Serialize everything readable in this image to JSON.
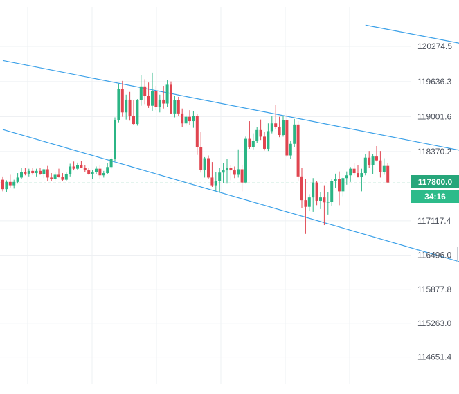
{
  "chart_data": {
    "type": "candlestick",
    "price_axis": {
      "ticks": [
        "120274.5",
        "119636.3",
        "119001.6",
        "118370.2",
        "117117.4",
        "116496.0",
        "115877.8",
        "115263.0",
        "114651.4"
      ],
      "tick_values": [
        120274.5,
        119636.3,
        119001.6,
        118370.2,
        117117.4,
        116496.0,
        115877.8,
        115263.0,
        114651.4
      ]
    },
    "current_price": {
      "label": "117800.0",
      "value": 117800.0,
      "color": "#26a67a"
    },
    "countdown": {
      "label": "34:16",
      "color": "#2dbb8a"
    },
    "colors": {
      "up": "#2bb585",
      "down": "#e04550",
      "channel": "#3aa0e8",
      "grid": "#eef0f3",
      "price_line": "#26a67a"
    },
    "grid": true,
    "channel_lines": [
      {
        "name": "upper",
        "from": [
          0,
          120020
        ],
        "to": [
          127,
          118330
        ]
      },
      {
        "name": "lower",
        "from": [
          0,
          118770
        ],
        "to": [
          127,
          116280
        ]
      },
      {
        "name": "top",
        "from": [
          97,
          120660
        ],
        "to": [
          127,
          120270
        ]
      }
    ],
    "candles": [
      [
        117860,
        117920,
        117650,
        117690
      ],
      [
        117690,
        117850,
        117640,
        117820
      ],
      [
        117820,
        117950,
        117720,
        117760
      ],
      [
        117760,
        117860,
        117700,
        117820
      ],
      [
        117820,
        117980,
        117790,
        117900
      ],
      [
        117900,
        118080,
        117880,
        118000
      ],
      [
        118000,
        118080,
        117940,
        117970
      ],
      [
        117970,
        118060,
        117920,
        118020
      ],
      [
        118020,
        118080,
        117950,
        117980
      ],
      [
        117980,
        118060,
        117920,
        118020
      ],
      [
        118020,
        118080,
        117950,
        117960
      ],
      [
        117960,
        118060,
        117890,
        118050
      ],
      [
        118050,
        118110,
        117830,
        117900
      ],
      [
        117900,
        117980,
        117840,
        117880
      ],
      [
        117880,
        117990,
        117850,
        117950
      ],
      [
        117950,
        118060,
        117900,
        117910
      ],
      [
        117910,
        117980,
        117830,
        117860
      ],
      [
        117860,
        117990,
        117840,
        117960
      ],
      [
        117960,
        118150,
        117920,
        118100
      ],
      [
        118100,
        118190,
        118030,
        118060
      ],
      [
        118060,
        118170,
        118030,
        118120
      ],
      [
        118120,
        118200,
        118070,
        118080
      ],
      [
        118080,
        118130,
        118000,
        118030
      ],
      [
        118030,
        118080,
        117950,
        117960
      ],
      [
        117960,
        118040,
        117870,
        118000
      ],
      [
        118000,
        118100,
        117960,
        118060
      ],
      [
        118060,
        118120,
        117870,
        117940
      ],
      [
        117940,
        118020,
        117900,
        117980
      ],
      [
        117980,
        118160,
        117960,
        118090
      ],
      [
        118090,
        118260,
        118060,
        118240
      ],
      [
        118240,
        118990,
        118200,
        118940
      ],
      [
        118940,
        119600,
        118900,
        119500
      ],
      [
        119500,
        119650,
        119000,
        119080
      ],
      [
        119080,
        119400,
        118950,
        119310
      ],
      [
        119310,
        119450,
        118930,
        119010
      ],
      [
        119010,
        119300,
        118850,
        118870
      ],
      [
        118870,
        119320,
        118840,
        119300
      ],
      [
        119300,
        119760,
        119200,
        119550
      ],
      [
        119550,
        119680,
        119230,
        119380
      ],
      [
        119380,
        119620,
        119160,
        119200
      ],
      [
        119200,
        119800,
        119100,
        119460
      ],
      [
        119460,
        119560,
        119120,
        119180
      ],
      [
        119180,
        119400,
        119080,
        119310
      ],
      [
        119310,
        119560,
        119150,
        119240
      ],
      [
        119240,
        119660,
        119180,
        119580
      ],
      [
        119580,
        119640,
        119050,
        119060
      ],
      [
        119060,
        119380,
        118990,
        119300
      ],
      [
        119300,
        119360,
        119020,
        119060
      ],
      [
        119060,
        119150,
        118810,
        118880
      ],
      [
        118880,
        119030,
        118840,
        119000
      ],
      [
        119000,
        119120,
        118850,
        118920
      ],
      [
        118920,
        119100,
        118800,
        119010
      ],
      [
        119010,
        119050,
        118310,
        118450
      ],
      [
        118450,
        118720,
        117990,
        118040
      ],
      [
        118040,
        118270,
        117900,
        118250
      ],
      [
        118250,
        118300,
        117880,
        117900
      ],
      [
        117900,
        118180,
        117730,
        117760
      ],
      [
        117760,
        118000,
        117660,
        117840
      ],
      [
        117840,
        118080,
        117630,
        117990
      ],
      [
        117990,
        118160,
        117800,
        118030
      ],
      [
        118030,
        118240,
        117790,
        118080
      ],
      [
        118080,
        118120,
        117850,
        118030
      ],
      [
        118030,
        118100,
        117890,
        117950
      ],
      [
        117950,
        118410,
        117900,
        118050
      ],
      [
        118050,
        118120,
        117650,
        117810
      ],
      [
        117810,
        118640,
        117790,
        118600
      ],
      [
        118600,
        118920,
        118420,
        118450
      ],
      [
        118450,
        118700,
        118410,
        118560
      ],
      [
        118560,
        118810,
        118520,
        118760
      ],
      [
        118760,
        118950,
        118580,
        118640
      ],
      [
        118640,
        118730,
        118390,
        118420
      ],
      [
        118420,
        118880,
        118380,
        118740
      ],
      [
        118740,
        119010,
        118700,
        118880
      ],
      [
        118880,
        119210,
        118780,
        118820
      ],
      [
        118820,
        119000,
        118630,
        118670
      ],
      [
        118670,
        119010,
        118640,
        118940
      ],
      [
        118940,
        119040,
        118270,
        118300
      ],
      [
        118300,
        118560,
        118240,
        118510
      ],
      [
        118510,
        118960,
        118450,
        118860
      ],
      [
        118860,
        118920,
        117830,
        117920
      ],
      [
        117920,
        118080,
        117350,
        117490
      ],
      [
        117490,
        117880,
        116880,
        117370
      ],
      [
        117370,
        117600,
        117290,
        117540
      ],
      [
        117540,
        117890,
        117280,
        117810
      ],
      [
        117810,
        117840,
        117400,
        117480
      ],
      [
        117480,
        117630,
        117330,
        117540
      ],
      [
        117540,
        117760,
        117040,
        117450
      ],
      [
        117450,
        117640,
        117230,
        117460
      ],
      [
        117460,
        117870,
        117380,
        117840
      ],
      [
        117840,
        117970,
        117710,
        117880
      ],
      [
        117880,
        118010,
        117400,
        117650
      ],
      [
        117650,
        117920,
        117560,
        117890
      ],
      [
        117890,
        118010,
        117770,
        117940
      ],
      [
        117940,
        118090,
        117820,
        118060
      ],
      [
        118060,
        118160,
        117940,
        117980
      ],
      [
        117980,
        118130,
        117900,
        117910
      ],
      [
        117910,
        118060,
        117650,
        117980
      ],
      [
        117980,
        118320,
        117940,
        118260
      ],
      [
        118260,
        118380,
        118070,
        118120
      ],
      [
        118120,
        118330,
        117960,
        118280
      ],
      [
        118280,
        118470,
        118190,
        118210
      ],
      [
        118210,
        118380,
        117900,
        118000
      ],
      [
        118000,
        118250,
        117950,
        118110
      ],
      [
        118110,
        118160,
        117800,
        117810
      ]
    ]
  }
}
